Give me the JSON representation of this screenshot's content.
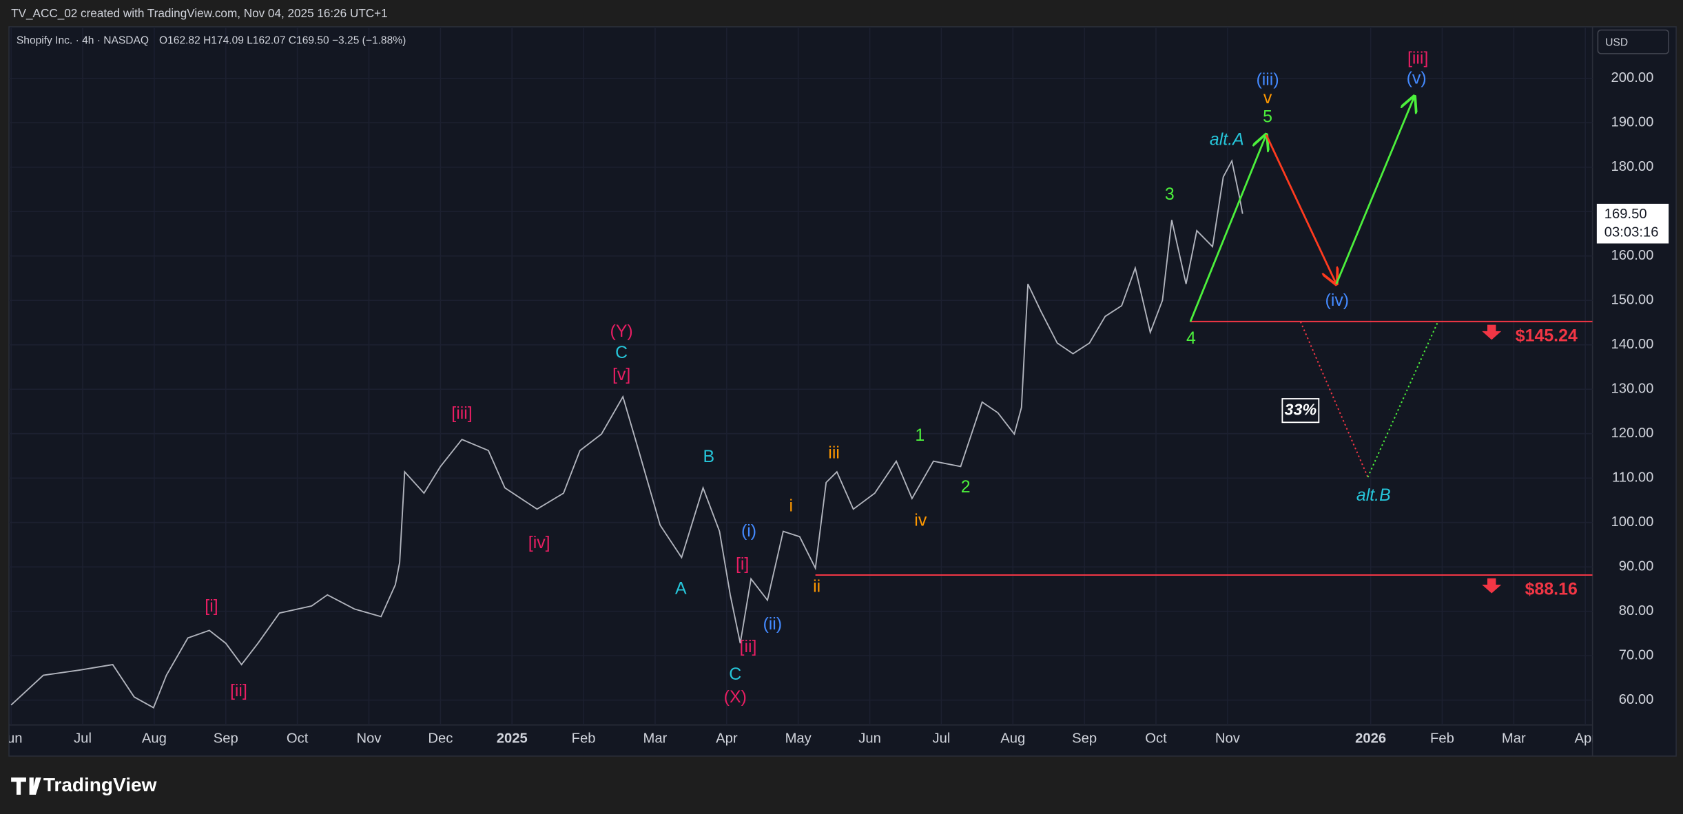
{
  "header": {
    "caption": "TV_ACC_02 created with TradingView.com, Nov 04, 2025 16:26 UTC+1"
  },
  "legend": {
    "symbol": "Shopify Inc. · 4h · NASDAQ",
    "ohlc": "O162.82 H174.09 L162.07 C169.50 −3.25 (−1.88%)"
  },
  "currency": "USD",
  "price_tag": {
    "price": "169.50",
    "countdown": "03:03:16"
  },
  "footer": {
    "brand": "TradingView"
  },
  "chart_data": {
    "type": "line",
    "color": "#b2b5be",
    "grid": true,
    "x": [
      6.0,
      6.45,
      6.97,
      7.42,
      7.72,
      7.99,
      8.17,
      8.47,
      8.77,
      9.0,
      9.22,
      9.45,
      9.75,
      10.2,
      10.42,
      10.8,
      11.17,
      11.37,
      11.43,
      11.5,
      11.77,
      12.0,
      12.3,
      12.67,
      12.9,
      13.35,
      13.72,
      13.95,
      14.25,
      14.55,
      14.77,
      15.07,
      15.37,
      15.67,
      15.9,
      16.05,
      16.19,
      16.34,
      16.57,
      16.79,
      17.02,
      17.24,
      17.39,
      17.54,
      17.77,
      18.07,
      18.37,
      18.59,
      18.89,
      19.27,
      19.57,
      19.79,
      20.02,
      20.12,
      20.21,
      20.39,
      20.62,
      20.84,
      21.07,
      21.29,
      21.52,
      21.71,
      21.92,
      22.09,
      22.22,
      22.42,
      22.57,
      22.79,
      22.94,
      23.06,
      23.17,
      23.21
    ],
    "values": [
      58.9,
      65.6,
      66.8,
      68,
      60.7,
      58.3,
      65.6,
      74,
      75.7,
      72.8,
      68,
      72.8,
      79.6,
      81.2,
      83.7,
      80.5,
      78.8,
      86,
      91,
      111.4,
      106.6,
      112.6,
      118.7,
      116.2,
      107.8,
      103,
      106.6,
      116.2,
      119.9,
      128.3,
      116.2,
      99.4,
      92.1,
      107.8,
      98,
      83.7,
      72.8,
      87.3,
      82.5,
      98,
      96.8,
      89.7,
      109,
      111.4,
      103,
      106.6,
      113.8,
      105.4,
      113.8,
      112.6,
      127.1,
      124.7,
      119.9,
      125.9,
      153.7,
      147.6,
      140.4,
      138,
      140.4,
      146.4,
      148.8,
      157.3,
      142.8,
      150,
      168.1,
      153.7,
      165.7,
      162.1,
      177.8,
      181.4,
      173,
      169.5
    ],
    "xlim": [
      5.97,
      28.1
    ],
    "xticks": [
      {
        "value": 6,
        "label": "Jun"
      },
      {
        "value": 7,
        "label": "Jul"
      },
      {
        "value": 8,
        "label": "Aug"
      },
      {
        "value": 9,
        "label": "Sep"
      },
      {
        "value": 10,
        "label": "Oct"
      },
      {
        "value": 11,
        "label": "Nov"
      },
      {
        "value": 12,
        "label": "Dec"
      },
      {
        "value": 13,
        "label": "2025"
      },
      {
        "value": 14,
        "label": "Feb"
      },
      {
        "value": 15,
        "label": "Mar"
      },
      {
        "value": 16,
        "label": "Apr"
      },
      {
        "value": 17,
        "label": "May"
      },
      {
        "value": 18,
        "label": "Jun"
      },
      {
        "value": 19,
        "label": "Jul"
      },
      {
        "value": 20,
        "label": "Aug"
      },
      {
        "value": 21,
        "label": "Sep"
      },
      {
        "value": 22,
        "label": "Oct"
      },
      {
        "value": 23,
        "label": "Nov"
      },
      {
        "value": 25,
        "label": "2026"
      },
      {
        "value": 26,
        "label": "Feb"
      },
      {
        "value": 27,
        "label": "Mar"
      },
      {
        "value": 28,
        "label": "Apr"
      }
    ],
    "ylim": [
      47.4,
      211.6
    ],
    "yticks": [
      {
        "value": 60,
        "label": "60.00"
      },
      {
        "value": 70,
        "label": "70.00"
      },
      {
        "value": 80,
        "label": "80.00"
      },
      {
        "value": 90,
        "label": "90.00"
      },
      {
        "value": 100,
        "label": "100.00"
      },
      {
        "value": 110,
        "label": "110.00"
      },
      {
        "value": 120,
        "label": "120.00"
      },
      {
        "value": 130,
        "label": "130.00"
      },
      {
        "value": 140,
        "label": "140.00"
      },
      {
        "value": 150,
        "label": "150.00"
      },
      {
        "value": 160,
        "label": "160.00"
      },
      {
        "value": 170,
        "label": "170.00"
      },
      {
        "value": 180,
        "label": "180.00"
      },
      {
        "value": 190,
        "label": "190.00"
      },
      {
        "value": 200,
        "label": "200.00"
      }
    ],
    "levels": [
      {
        "value": 145.24,
        "label": "$145.24",
        "from": 22.48,
        "color": "#f23645"
      },
      {
        "value": 88.16,
        "label": "$88.16",
        "from": 17.24,
        "color": "#f23645"
      }
    ],
    "projections": [
      {
        "from": [
          22.48,
          145.2
        ],
        "to": [
          23.54,
          187.3
        ],
        "color": "#4cf03c",
        "dotted": false
      },
      {
        "from": [
          23.54,
          187.3
        ],
        "to": [
          24.52,
          153.7
        ],
        "color": "#ff3b1f",
        "dotted": false
      },
      {
        "from": [
          24.52,
          153.7
        ],
        "to": [
          25.61,
          195.9
        ],
        "color": "#4cf03c",
        "dotted": false
      },
      {
        "from": [
          24.02,
          145.2
        ],
        "to": [
          24.96,
          110.2
        ],
        "color": "#f23645",
        "dotted": true
      },
      {
        "from": [
          24.96,
          110.2
        ],
        "to": [
          25.94,
          145.2
        ],
        "color": "#4cf03c",
        "dotted": true
      }
    ],
    "annotations": [
      {
        "text": "[i]",
        "x": 8.8,
        "y": 81.0,
        "color": "#e91e63"
      },
      {
        "text": "[ii]",
        "x": 9.18,
        "y": 61.9,
        "color": "#e91e63"
      },
      {
        "text": "[iii]",
        "x": 12.3,
        "y": 124.4,
        "color": "#e91e63"
      },
      {
        "text": "[iv]",
        "x": 13.38,
        "y": 95.2,
        "color": "#e91e63"
      },
      {
        "text": "(Y)",
        "x": 14.53,
        "y": 142.8,
        "color": "#e91e63"
      },
      {
        "text": "C",
        "x": 14.53,
        "y": 138.0,
        "color": "#26c6da"
      },
      {
        "text": "[v]",
        "x": 14.53,
        "y": 133.1,
        "color": "#e91e63"
      },
      {
        "text": "B",
        "x": 15.75,
        "y": 114.6,
        "color": "#26c6da"
      },
      {
        "text": "A",
        "x": 15.36,
        "y": 84.9,
        "color": "#26c6da"
      },
      {
        "text": "(i)",
        "x": 16.31,
        "y": 97.9,
        "color": "#448aff"
      },
      {
        "text": "[i]",
        "x": 16.22,
        "y": 90.4,
        "color": "#e91e63"
      },
      {
        "text": "(ii)",
        "x": 16.64,
        "y": 76.9,
        "color": "#448aff"
      },
      {
        "text": "[ii]",
        "x": 16.3,
        "y": 71.8,
        "color": "#e91e63"
      },
      {
        "text": "C",
        "x": 16.12,
        "y": 65.6,
        "color": "#26c6da"
      },
      {
        "text": "(X)",
        "x": 16.12,
        "y": 60.5,
        "color": "#e91e63"
      },
      {
        "text": "i",
        "x": 16.9,
        "y": 103.5,
        "color": "#ff9800"
      },
      {
        "text": "ii",
        "x": 17.26,
        "y": 85.4,
        "color": "#ff9800"
      },
      {
        "text": "iii",
        "x": 17.5,
        "y": 115.5,
        "color": "#ff9800"
      },
      {
        "text": "iv",
        "x": 18.71,
        "y": 100.3,
        "color": "#ff9800"
      },
      {
        "text": "1",
        "x": 18.7,
        "y": 119.4,
        "color": "#4cf03c"
      },
      {
        "text": "2",
        "x": 19.34,
        "y": 107.8,
        "color": "#4cf03c"
      },
      {
        "text": "3",
        "x": 22.19,
        "y": 173.7,
        "color": "#4cf03c"
      },
      {
        "text": "4",
        "x": 22.49,
        "y": 141.3,
        "color": "#4cf03c"
      },
      {
        "text": "5",
        "x": 23.56,
        "y": 191.1,
        "color": "#4cf03c"
      },
      {
        "text": "v",
        "x": 23.56,
        "y": 195.4,
        "color": "#ff9800"
      },
      {
        "text": "(iii)",
        "x": 23.56,
        "y": 199.5,
        "color": "#448aff"
      },
      {
        "text": "alt.A",
        "x": 22.99,
        "y": 186.0,
        "color": "#26c6da",
        "italic": true
      },
      {
        "text": "(iv)",
        "x": 24.53,
        "y": 149.8,
        "color": "#448aff"
      },
      {
        "text": "[iii]",
        "x": 25.66,
        "y": 204.3,
        "color": "#e91e63"
      },
      {
        "text": "(v)",
        "x": 25.64,
        "y": 199.8,
        "color": "#448aff"
      },
      {
        "text": "alt.B",
        "x": 25.04,
        "y": 105.9,
        "color": "#26c6da",
        "italic": true
      },
      {
        "text": "33%",
        "x": 24.02,
        "y": 125.2,
        "color": "#ffffff",
        "italic": true,
        "boxed": true
      }
    ]
  }
}
